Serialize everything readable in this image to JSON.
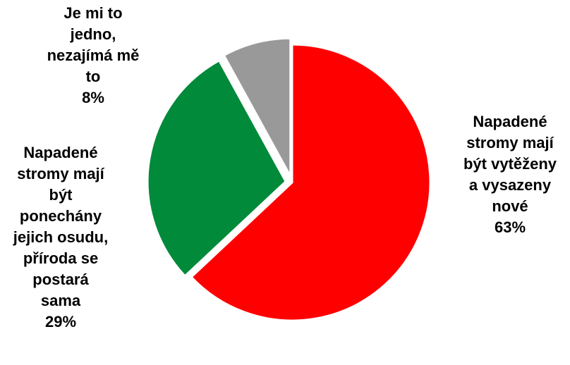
{
  "chart_data": {
    "type": "pie",
    "slices": [
      {
        "label": [
          "Napadené",
          "stromy mají",
          "být vytěženy",
          "a vysazeny",
          "nové"
        ],
        "value": 63,
        "value_label": "63%",
        "color": "#ff0000",
        "exploded": false
      },
      {
        "label": [
          "Napadené",
          "stromy mají",
          "být",
          "ponechány",
          "jejich osudu,",
          "příroda se",
          "postará",
          "sama"
        ],
        "value": 29,
        "value_label": "29%",
        "color": "#008a3a",
        "exploded": true
      },
      {
        "label": [
          "Je mi to",
          "jedno,",
          "nezajímá mě",
          "to"
        ],
        "value": 8,
        "value_label": "8%",
        "color": "#999999",
        "exploded": true
      }
    ],
    "title": "",
    "legend": "none"
  }
}
